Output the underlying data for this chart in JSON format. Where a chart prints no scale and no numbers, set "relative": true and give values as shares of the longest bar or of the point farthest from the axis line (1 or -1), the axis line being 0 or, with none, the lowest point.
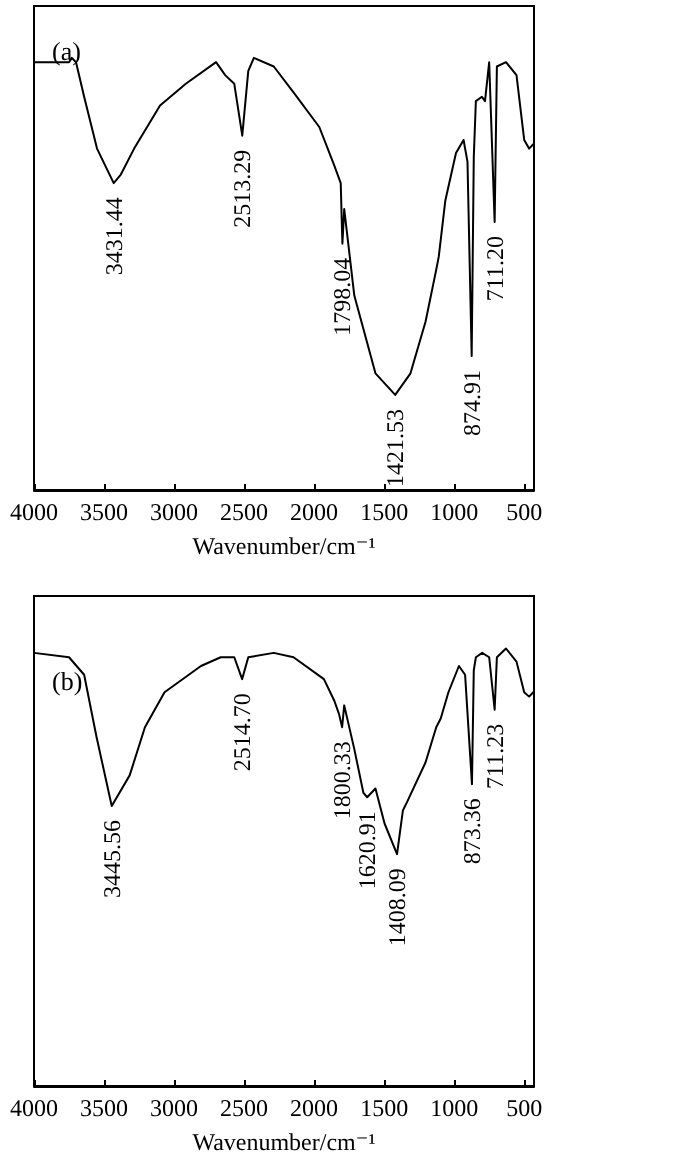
{
  "chart_data": [
    {
      "type": "line",
      "title": "(a)",
      "xlabel": "Wavenumber/cm⁻¹",
      "relative": true,
      "xlim": [
        4000,
        430
      ],
      "xticks": [
        4000,
        3500,
        3000,
        2500,
        2000,
        1500,
        1000,
        500
      ],
      "x": [
        4000,
        3750,
        3730,
        3700,
        3642,
        3550,
        3431,
        3380,
        3285,
        3100,
        2916,
        2700,
        2635,
        2570,
        2513,
        2470,
        2430,
        2288,
        2147,
        1963,
        1855,
        1810,
        1798,
        1785,
        1713,
        1562,
        1421,
        1312,
        1204,
        1128,
        1110,
        1063,
        987,
        933,
        905,
        875,
        860,
        845,
        802,
        780,
        750,
        711,
        695,
        630,
        555,
        500,
        465,
        435
      ],
      "series": [
        {
          "color": "#000000",
          "values": [
            0.99,
            0.99,
            1.0,
            0.99,
            0.91,
            0.79,
            0.71,
            0.73,
            0.79,
            0.89,
            0.94,
            0.99,
            0.96,
            0.94,
            0.82,
            0.97,
            1.0,
            0.98,
            0.92,
            0.84,
            0.75,
            0.71,
            0.57,
            0.65,
            0.45,
            0.27,
            0.22,
            0.27,
            0.39,
            0.51,
            0.54,
            0.67,
            0.78,
            0.81,
            0.76,
            0.31,
            0.77,
            0.9,
            0.91,
            0.9,
            0.99,
            0.62,
            0.98,
            0.99,
            0.96,
            0.81,
            0.79,
            0.8
          ]
        }
      ],
      "annotations": [
        {
          "text": "3431.44",
          "x": 3431,
          "y": 0.71
        },
        {
          "text": "2513.29",
          "x": 2513,
          "y": 0.82
        },
        {
          "text": "1798.04",
          "x": 1798,
          "y": 0.57
        },
        {
          "text": "1421.53",
          "x": 1421,
          "y": 0.22
        },
        {
          "text": "874.91",
          "x": 875,
          "y": 0.31
        },
        {
          "text": "711.20",
          "x": 711,
          "y": 0.62
        }
      ]
    },
    {
      "type": "line",
      "title": "(b)",
      "xlabel": "Wavenumber/cm⁻¹",
      "relative": true,
      "xlim": [
        4000,
        430
      ],
      "xticks": [
        4000,
        3500,
        3000,
        2500,
        2000,
        1500,
        1000,
        500
      ],
      "x": [
        4000,
        3750,
        3642,
        3555,
        3445,
        3317,
        3208,
        3068,
        2808,
        2667,
        2570,
        2514,
        2470,
        2288,
        2147,
        1930,
        1855,
        1822,
        1800,
        1785,
        1713,
        1648,
        1621,
        1562,
        1497,
        1408,
        1366,
        1335,
        1204,
        1128,
        1096,
        1041,
        966,
        922,
        873,
        860,
        845,
        800,
        750,
        711,
        695,
        630,
        555,
        500,
        465,
        435
      ],
      "series": [
        {
          "color": "#000000",
          "values": [
            0.99,
            0.98,
            0.94,
            0.8,
            0.64,
            0.71,
            0.82,
            0.9,
            0.96,
            0.98,
            0.98,
            0.93,
            0.98,
            0.99,
            0.98,
            0.93,
            0.88,
            0.85,
            0.82,
            0.87,
            0.77,
            0.67,
            0.66,
            0.68,
            0.6,
            0.53,
            0.63,
            0.65,
            0.74,
            0.82,
            0.84,
            0.9,
            0.96,
            0.94,
            0.69,
            0.95,
            0.98,
            0.99,
            0.98,
            0.86,
            0.98,
            1.0,
            0.97,
            0.9,
            0.89,
            0.9
          ]
        }
      ],
      "annotations": [
        {
          "text": "3445.56",
          "x": 3445,
          "y": 0.64
        },
        {
          "text": "2514.70",
          "x": 2514,
          "y": 0.93
        },
        {
          "text": "1800.33",
          "x": 1800,
          "y": 0.82
        },
        {
          "text": "1620.91",
          "x": 1621,
          "y": 0.66
        },
        {
          "text": "1408.09",
          "x": 1408,
          "y": 0.53
        },
        {
          "text": "873.36",
          "x": 873,
          "y": 0.69
        },
        {
          "text": "711.23",
          "x": 711,
          "y": 0.86
        }
      ]
    }
  ]
}
